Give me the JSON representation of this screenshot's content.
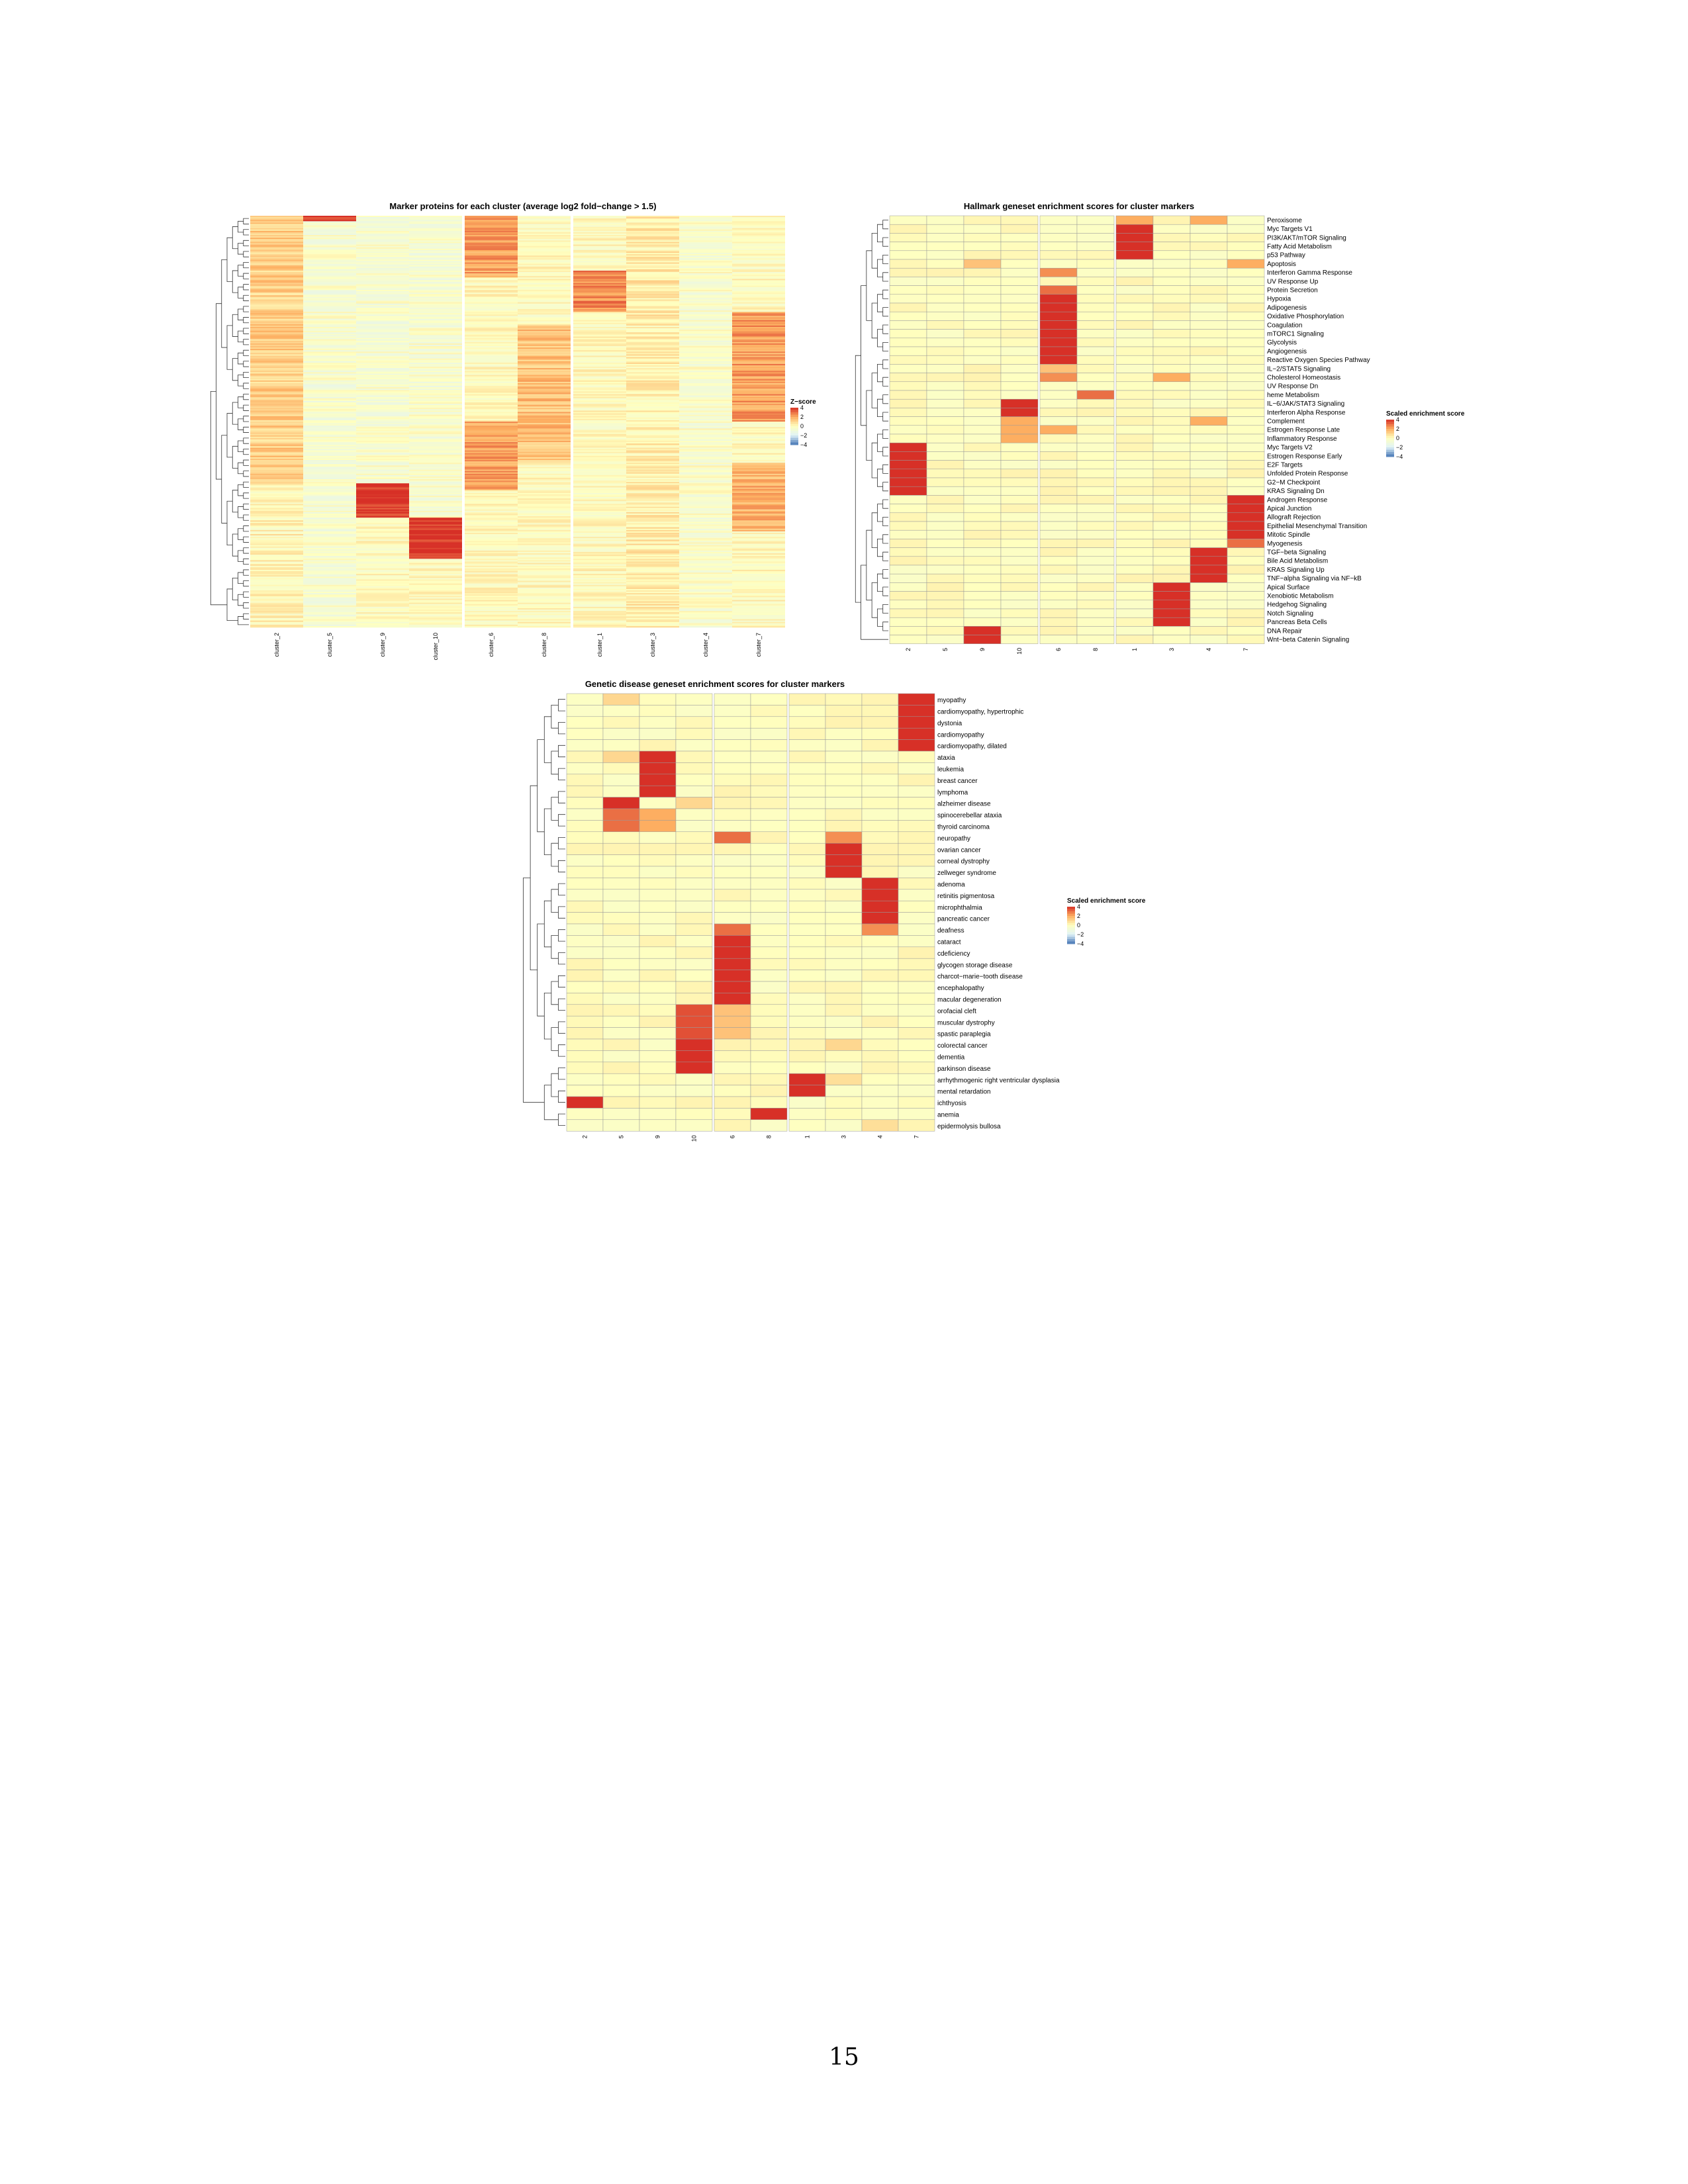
{
  "page": {
    "number": "15"
  },
  "palette": {
    "low": "#4575b4",
    "mid_low": "#e0f3f8",
    "mid": "#ffffbf",
    "mid_high": "#fdae61",
    "high": "#d73027",
    "border": "#9a9a9a"
  },
  "chart_data": [
    {
      "type": "heatmap",
      "title": "Marker proteins for each cluster (average log2 fold−change > 1.5)",
      "columns": [
        "cluster_2",
        "cluster_5",
        "cluster_9",
        "cluster_10",
        "cluster_6",
        "cluster_8",
        "cluster_1",
        "cluster_3",
        "cluster_4",
        "cluster_7"
      ],
      "column_splits": [
        4,
        6
      ],
      "row_count": 300,
      "row_dendrogram": true,
      "legend": {
        "title": "Z−score",
        "ticks": [
          "4",
          "2",
          "0",
          "−2",
          "−4"
        ],
        "range": [
          -4,
          4
        ],
        "position": "right"
      },
      "value_blocks": [
        {
          "column": "cluster_2",
          "rows": [
            0,
            195
          ],
          "value": 1.2
        },
        {
          "column": "cluster_2",
          "rows": [
            195,
            300
          ],
          "value": 0.2
        },
        {
          "column": "cluster_5",
          "rows": [
            0,
            4
          ],
          "value": 4
        },
        {
          "column": "cluster_5",
          "rows": [
            4,
            300
          ],
          "value": -0.5
        },
        {
          "column": "cluster_9",
          "rows": [
            195,
            220
          ],
          "value": 4
        },
        {
          "column": "cluster_9",
          "rows": [
            0,
            195
          ],
          "value": -0.5
        },
        {
          "column": "cluster_10",
          "rows": [
            220,
            250
          ],
          "value": 4
        },
        {
          "column": "cluster_10",
          "rows": [
            0,
            220
          ],
          "value": -0.5
        },
        {
          "column": "cluster_6",
          "rows": [
            0,
            45
          ],
          "value": 2.2
        },
        {
          "column": "cluster_6",
          "rows": [
            150,
            200
          ],
          "value": 2.2
        },
        {
          "column": "cluster_8",
          "rows": [
            80,
            180
          ],
          "value": 1.5
        },
        {
          "column": "cluster_1",
          "rows": [
            40,
            70
          ],
          "value": 2.5
        },
        {
          "column": "cluster_3",
          "rows": [
            0,
            300
          ],
          "value": 0.4
        },
        {
          "column": "cluster_4",
          "rows": [
            60,
            70
          ],
          "value": 1.5
        },
        {
          "column": "cluster_4",
          "rows": [
            0,
            300
          ],
          "value": -0.4
        },
        {
          "column": "cluster_7",
          "rows": [
            70,
            150
          ],
          "value": 2.2
        },
        {
          "column": "cluster_7",
          "rows": [
            180,
            230
          ],
          "value": 1.8
        }
      ]
    },
    {
      "type": "heatmap",
      "title": "Hallmark geneset enrichment scores for cluster markers",
      "columns": [
        "2",
        "5",
        "9",
        "10",
        "6",
        "8",
        "1",
        "3",
        "4",
        "7"
      ],
      "column_splits": [
        4,
        6
      ],
      "rows": [
        "Peroxisome",
        "Myc Targets V1",
        "PI3K/AKT/mTOR  Signaling",
        "Fatty Acid Metabolism",
        "p53 Pathway",
        "Apoptosis",
        "Interferon Gamma Response",
        "UV Response Up",
        "Protein Secretion",
        "Hypoxia",
        "Adipogenesis",
        "Oxidative Phosphorylation",
        "Coagulation",
        "mTORC1 Signaling",
        "Glycolysis",
        "Angiogenesis",
        "Reactive Oxygen Species Pathway",
        "IL−2/STAT5 Signaling",
        "Cholesterol Homeostasis",
        "UV Response Dn",
        "heme Metabolism",
        "IL−6/JAK/STAT3 Signaling",
        "Interferon Alpha Response",
        "Complement",
        "Estrogen Response Late",
        "Inflammatory Response",
        "Myc Targets V2",
        "Estrogen Response Early",
        "E2F Targets",
        "Unfolded Protein Response",
        "G2−M Checkpoint",
        "KRAS Signaling Dn",
        "Androgen Response",
        "Apical Junction",
        "Allograft Rejection",
        "Epithelial Mesenchymal Transition",
        "Mitotic Spindle",
        "Myogenesis",
        "TGF−beta Signaling",
        "Bile Acid Metabolism",
        "KRAS Signaling Up",
        "TNF−alpha Signaling via NF−kB",
        "Apical Surface",
        "Xenobiotic Metabolism",
        "Hedgehog Signaling",
        "Notch Signaling",
        "Pancreas Beta Cells",
        "DNA Repair",
        "Wnt−beta Catenin Signaling"
      ],
      "row_dendrogram": true,
      "legend": {
        "title": "Scaled enrichment score",
        "ticks": [
          "4",
          "2",
          "0",
          "−2",
          "−4"
        ],
        "range": [
          -4,
          4
        ],
        "position": "right"
      },
      "high_cells": [
        [
          "Peroxisome",
          "1",
          2
        ],
        [
          "Peroxisome",
          "4",
          2
        ],
        [
          "Myc Targets V1",
          "1",
          4
        ],
        [
          "PI3K/AKT/mTOR  Signaling",
          "1",
          4
        ],
        [
          "Fatty Acid Metabolism",
          "1",
          4
        ],
        [
          "p53 Pathway",
          "1",
          4
        ],
        [
          "Apoptosis",
          "9",
          1.5
        ],
        [
          "Apoptosis",
          "7",
          2
        ],
        [
          "Interferon Gamma Response",
          "6",
          2.5
        ],
        [
          "Protein Secretion",
          "6",
          3
        ],
        [
          "Hypoxia",
          "6",
          4
        ],
        [
          "Adipogenesis",
          "6",
          4
        ],
        [
          "Oxidative Phosphorylation",
          "6",
          4
        ],
        [
          "Coagulation",
          "6",
          4
        ],
        [
          "mTORC1 Signaling",
          "6",
          4
        ],
        [
          "Glycolysis",
          "6",
          4
        ],
        [
          "Angiogenesis",
          "6",
          4
        ],
        [
          "Reactive Oxygen Species Pathway",
          "6",
          4
        ],
        [
          "IL−2/STAT5 Signaling",
          "6",
          1.5
        ],
        [
          "Cholesterol Homeostasis",
          "6",
          2.5
        ],
        [
          "Cholesterol Homeostasis",
          "3",
          2
        ],
        [
          "heme Metabolism",
          "8",
          3
        ],
        [
          "IL−6/JAK/STAT3 Signaling",
          "10",
          4
        ],
        [
          "Interferon Alpha Response",
          "10",
          4
        ],
        [
          "Complement",
          "10",
          2
        ],
        [
          "Complement",
          "4",
          2
        ],
        [
          "Estrogen Response Late",
          "10",
          2
        ],
        [
          "Estrogen Response Late",
          "6",
          2
        ],
        [
          "Inflammatory Response",
          "10",
          2
        ],
        [
          "Myc Targets V2",
          "2",
          4
        ],
        [
          "Estrogen Response Early",
          "2",
          4
        ],
        [
          "E2F Targets",
          "2",
          4
        ],
        [
          "Unfolded Protein Response",
          "2",
          4
        ],
        [
          "G2−M Checkpoint",
          "2",
          4
        ],
        [
          "KRAS Signaling Dn",
          "2",
          4
        ],
        [
          "Androgen Response",
          "7",
          4
        ],
        [
          "Apical Junction",
          "7",
          4
        ],
        [
          "Allograft Rejection",
          "7",
          4
        ],
        [
          "Epithelial Mesenchymal Transition",
          "7",
          4
        ],
        [
          "Mitotic Spindle",
          "7",
          4
        ],
        [
          "Myogenesis",
          "7",
          3
        ],
        [
          "TGF−beta Signaling",
          "4",
          4
        ],
        [
          "Bile Acid Metabolism",
          "4",
          4
        ],
        [
          "KRAS Signaling Up",
          "4",
          4
        ],
        [
          "TNF−alpha Signaling via NF−kB",
          "4",
          4
        ],
        [
          "Apical Surface",
          "3",
          4
        ],
        [
          "Xenobiotic Metabolism",
          "3",
          4
        ],
        [
          "Hedgehog Signaling",
          "3",
          4
        ],
        [
          "Notch Signaling",
          "3",
          4
        ],
        [
          "Pancreas Beta Cells",
          "3",
          4
        ],
        [
          "DNA Repair",
          "9",
          4
        ],
        [
          "Wnt−beta Catenin Signaling",
          "9",
          4
        ]
      ]
    },
    {
      "type": "heatmap",
      "title": "Genetic disease geneset enrichment scores for cluster markers",
      "columns": [
        "2",
        "5",
        "9",
        "10",
        "6",
        "8",
        "1",
        "3",
        "4",
        "7"
      ],
      "column_splits": [
        4,
        6
      ],
      "rows": [
        "myopathy",
        "cardiomyopathy, hypertrophic",
        "dystonia",
        "cardiomyopathy",
        "cardiomyopathy, dilated",
        "ataxia",
        "leukemia",
        "breast cancer",
        "lymphoma",
        "alzheimer disease",
        "spinocerebellar ataxia",
        "thyroid carcinoma",
        "neuropathy",
        "ovarian cancer",
        "corneal dystrophy",
        "zellweger syndrome",
        "adenoma",
        "retinitis pigmentosa",
        "microphthalmia",
        "pancreatic cancer",
        "deafness",
        "cataract",
        "cdeficiency",
        "glycogen storage disease",
        "charcot−marie−tooth disease",
        "encephalopathy",
        "macular degeneration",
        "orofacial cleft",
        "muscular dystrophy",
        "spastic paraplegia",
        "colorectal cancer",
        "dementia",
        "parkinson disease",
        "arrhythmogenic right ventricular dysplasia",
        "mental retardation",
        "ichthyosis",
        "anemia",
        "epidermolysis bullosa"
      ],
      "row_dendrogram": true,
      "legend": {
        "title": "Scaled enrichment score",
        "ticks": [
          "4",
          "2",
          "0",
          "−2",
          "−4"
        ],
        "range": [
          -4,
          4
        ],
        "position": "right"
      },
      "high_cells": [
        [
          "myopathy",
          "7",
          4
        ],
        [
          "myopathy",
          "5",
          1
        ],
        [
          "cardiomyopathy, hypertrophic",
          "7",
          4
        ],
        [
          "dystonia",
          "7",
          4
        ],
        [
          "cardiomyopathy",
          "7",
          4
        ],
        [
          "cardiomyopathy, dilated",
          "7",
          4
        ],
        [
          "ataxia",
          "9",
          4
        ],
        [
          "ataxia",
          "5",
          1
        ],
        [
          "leukemia",
          "9",
          4
        ],
        [
          "breast cancer",
          "9",
          4
        ],
        [
          "lymphoma",
          "9",
          4
        ],
        [
          "alzheimer disease",
          "5",
          4
        ],
        [
          "alzheimer disease",
          "10",
          1
        ],
        [
          "spinocerebellar ataxia",
          "5",
          3
        ],
        [
          "spinocerebellar ataxia",
          "9",
          2
        ],
        [
          "thyroid carcinoma",
          "5",
          3
        ],
        [
          "thyroid carcinoma",
          "9",
          2
        ],
        [
          "neuropathy",
          "6",
          3
        ],
        [
          "neuropathy",
          "3",
          2.5
        ],
        [
          "ovarian cancer",
          "3",
          4
        ],
        [
          "corneal dystrophy",
          "3",
          4
        ],
        [
          "zellweger syndrome",
          "3",
          4
        ],
        [
          "adenoma",
          "4",
          4
        ],
        [
          "retinitis pigmentosa",
          "4",
          4
        ],
        [
          "microphthalmia",
          "4",
          4
        ],
        [
          "pancreatic cancer",
          "4",
          4
        ],
        [
          "deafness",
          "6",
          3
        ],
        [
          "deafness",
          "4",
          2.5
        ],
        [
          "cataract",
          "6",
          4
        ],
        [
          "cdeficiency",
          "6",
          4
        ],
        [
          "glycogen storage disease",
          "6",
          4
        ],
        [
          "charcot−marie−tooth disease",
          "6",
          4
        ],
        [
          "encephalopathy",
          "6",
          4
        ],
        [
          "macular degeneration",
          "6",
          4
        ],
        [
          "orofacial cleft",
          "10",
          3.5
        ],
        [
          "orofacial cleft",
          "6",
          1.5
        ],
        [
          "muscular dystrophy",
          "10",
          3.5
        ],
        [
          "muscular dystrophy",
          "6",
          1.5
        ],
        [
          "spastic paraplegia",
          "10",
          3.5
        ],
        [
          "spastic paraplegia",
          "6",
          1.5
        ],
        [
          "colorectal cancer",
          "10",
          4
        ],
        [
          "colorectal cancer",
          "3",
          1
        ],
        [
          "dementia",
          "10",
          4
        ],
        [
          "parkinson disease",
          "10",
          4
        ],
        [
          "arrhythmogenic right ventricular dysplasia",
          "1",
          4
        ],
        [
          "arrhythmogenic right ventricular dysplasia",
          "3",
          0.8
        ],
        [
          "mental retardation",
          "1",
          4
        ],
        [
          "ichthyosis",
          "2",
          4
        ],
        [
          "anemia",
          "8",
          4
        ],
        [
          "epidermolysis bullosa",
          "4",
          0.8
        ]
      ]
    }
  ]
}
